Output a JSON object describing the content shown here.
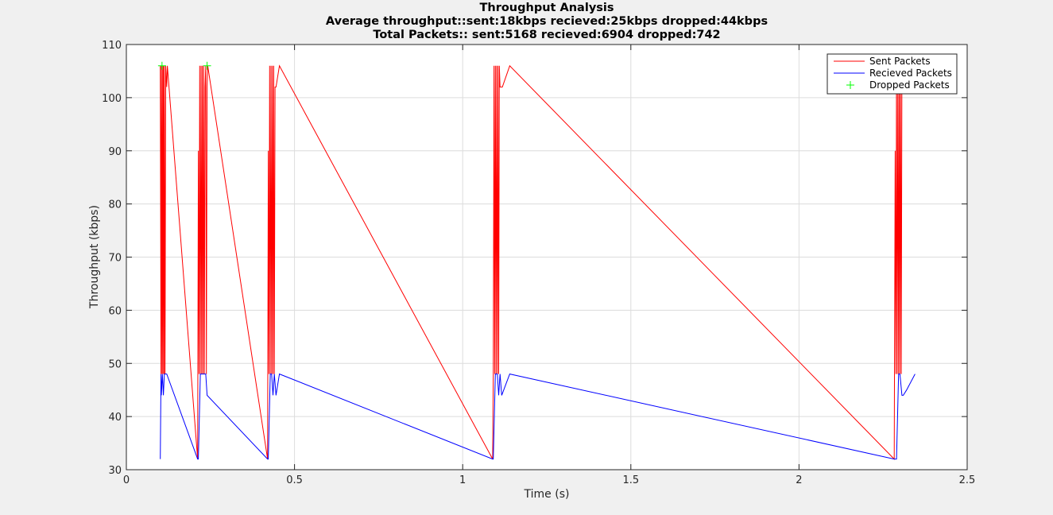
{
  "chart_data": {
    "type": "line",
    "title": "Throughput Analysis",
    "subtitle": [
      "Average throughput::sent:18kbps recieved:25kbps dropped:44kbps",
      "Total Packets:: sent:5168 recieved:6904 dropped:742"
    ],
    "xlabel": "Time (s)",
    "ylabel": "Throughput (kbps)",
    "xlim": [
      0,
      2.5
    ],
    "ylim": [
      30,
      110
    ],
    "xticks": [
      0,
      0.5,
      1,
      1.5,
      2,
      2.5
    ],
    "xtick_labels": [
      "0",
      "0.5",
      "1",
      "1.5",
      "2",
      "2.5"
    ],
    "yticks": [
      30,
      40,
      50,
      60,
      70,
      80,
      90,
      100,
      110
    ],
    "ytick_labels": [
      "30",
      "40",
      "50",
      "60",
      "70",
      "80",
      "90",
      "100",
      "110"
    ],
    "grid": true,
    "legend_position": "top-right",
    "series": [
      {
        "name": "Sent Packets",
        "color": "#ff0000",
        "style": "line",
        "x": [
          0.101,
          0.103,
          0.104,
          0.106,
          0.107,
          0.109,
          0.11,
          0.112,
          0.113,
          0.115,
          0.117,
          0.12,
          0.122,
          0.212,
          0.214,
          0.216,
          0.218,
          0.22,
          0.222,
          0.224,
          0.226,
          0.228,
          0.23,
          0.232,
          0.234,
          0.236,
          0.238,
          0.24,
          0.242,
          0.42,
          0.422,
          0.424,
          0.426,
          0.428,
          0.43,
          0.432,
          0.434,
          0.436,
          0.438,
          0.44,
          0.442,
          0.445,
          0.455,
          1.089,
          1.091,
          1.093,
          1.095,
          1.097,
          1.099,
          1.101,
          1.103,
          1.105,
          1.107,
          1.109,
          1.111,
          1.113,
          1.116,
          1.118,
          1.14,
          2.283,
          2.286,
          2.288,
          2.29,
          2.292,
          2.294,
          2.296,
          2.298,
          2.3,
          2.302,
          2.304,
          2.306
        ],
        "y": [
          106,
          48,
          106,
          48,
          106,
          48,
          106,
          48,
          106,
          48,
          106,
          102,
          106,
          32,
          90,
          48,
          106,
          48,
          106,
          48,
          106,
          48,
          106,
          48,
          102,
          106,
          48,
          102,
          106,
          32,
          90,
          48,
          106,
          48,
          106,
          48,
          106,
          48,
          106,
          48,
          102,
          102,
          106,
          32,
          48,
          106,
          48,
          106,
          48,
          106,
          48,
          106,
          48,
          106,
          102,
          102,
          102,
          102,
          106,
          32,
          90,
          48,
          106,
          48,
          106,
          48,
          106,
          48,
          106,
          48,
          106
        ]
      },
      {
        "name": "Recieved Packets",
        "color": "#0000ff",
        "style": "line",
        "x": [
          0.101,
          0.103,
          0.104,
          0.107,
          0.11,
          0.113,
          0.12,
          0.212,
          0.214,
          0.22,
          0.226,
          0.232,
          0.236,
          0.24,
          0.42,
          0.422,
          0.428,
          0.432,
          0.436,
          0.44,
          0.445,
          0.455,
          1.089,
          1.091,
          1.097,
          1.103,
          1.107,
          1.111,
          1.116,
          1.14,
          2.283,
          2.29,
          2.296,
          2.3,
          2.306,
          2.31,
          2.32,
          2.345
        ],
        "y": [
          32,
          48,
          44,
          48,
          44,
          48,
          48,
          32,
          32,
          48,
          48,
          48,
          48,
          44,
          32,
          32,
          48,
          48,
          44,
          48,
          44,
          48,
          32,
          32,
          48,
          48,
          44,
          48,
          44,
          48,
          32,
          32,
          48,
          48,
          44,
          44,
          45,
          48
        ]
      },
      {
        "name": "Dropped Packets",
        "color": "#00ff00",
        "style": "markers",
        "marker": "+",
        "x": [
          0.106,
          0.24
        ],
        "y": [
          106,
          106
        ]
      }
    ]
  }
}
